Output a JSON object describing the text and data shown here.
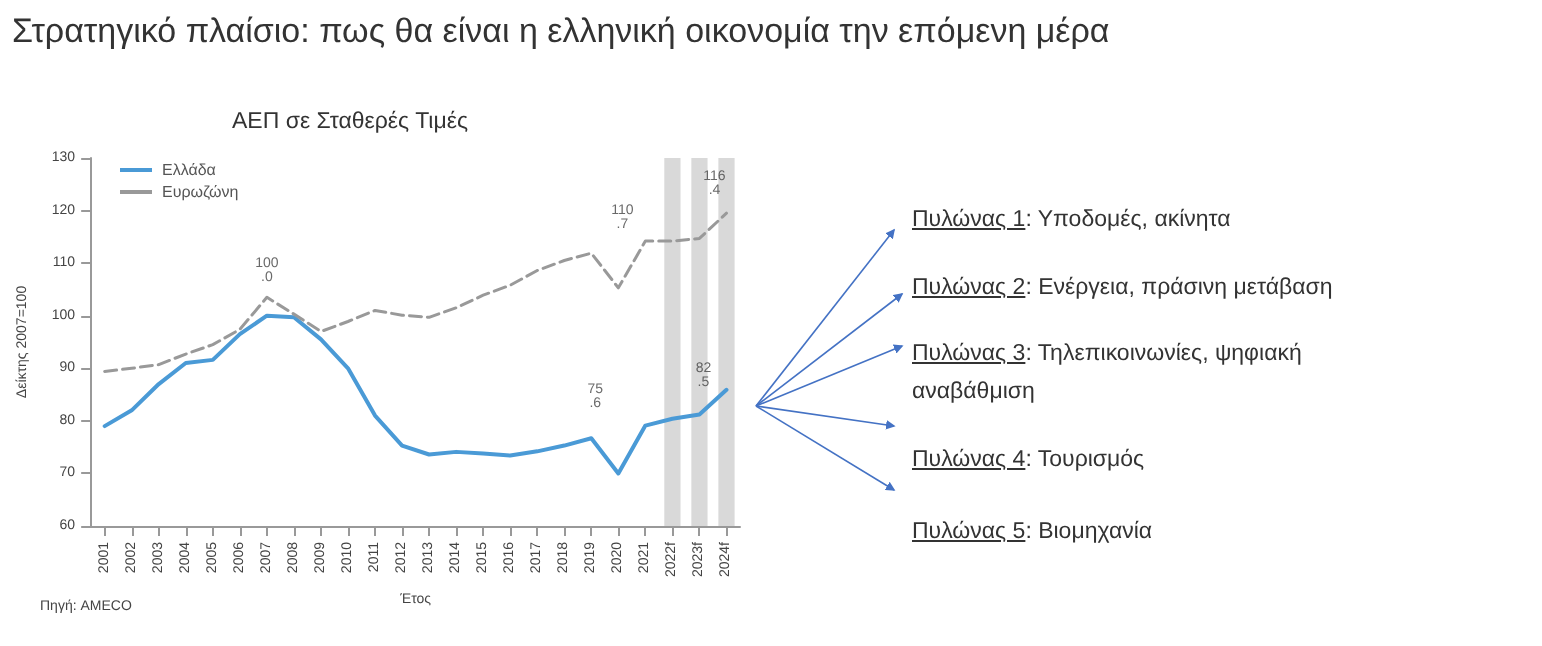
{
  "chart_data": {
    "type": "line",
    "title": "Στρατηγικό πλαίσιο: πως θα είναι η ελληνική οικονομία την επόμενη μέρα",
    "subtitle": "ΑΕΠ σε Σταθερές Τιμές",
    "xlabel": "Έτος",
    "ylabel": "Δείκτης 2007=100",
    "categories": [
      "2001",
      "2002",
      "2003",
      "2004",
      "2005",
      "2006",
      "2007",
      "2008",
      "2009",
      "2010",
      "2011",
      "2012",
      "2013",
      "2014",
      "2015",
      "2016",
      "2017",
      "2018",
      "2019",
      "2020",
      "2021",
      "2022f",
      "2023f",
      "2024f"
    ],
    "series": [
      {
        "name": "Ελλάδα",
        "color": "#4a9ad6",
        "line_style": "solid",
        "values": [
          79,
          82,
          87,
          91,
          91.6,
          96.5,
          100,
          99.7,
          95.5,
          90,
          81,
          75.3,
          73.6,
          74.1,
          73.8,
          73.4,
          74.2,
          75.3,
          76.7,
          70,
          79.1,
          80.4,
          81.2,
          85.9
        ]
      },
      {
        "name": "Ευρωζώνη",
        "color": "#999999",
        "line_style": "dashed",
        "values": [
          89.4,
          90,
          90.7,
          92.7,
          94.5,
          97.4,
          103.5,
          100.3,
          97,
          98.9,
          101,
          100.1,
          99.7,
          101.5,
          103.9,
          105.8,
          108.6,
          110.5,
          111.9,
          105.3,
          114.2,
          114.2,
          114.7,
          119.5
        ]
      }
    ],
    "ylim": [
      60,
      130
    ],
    "yticks": [
      60,
      70,
      80,
      90,
      100,
      110,
      120,
      130
    ],
    "grid": false,
    "legend": "top left",
    "marker": "none",
    "bands": [
      {
        "axis": "x",
        "from": "2022f",
        "to": "2022f",
        "color": "#d9d9d9"
      },
      {
        "axis": "x",
        "from": "2023f",
        "to": "2023f",
        "color": "#d9d9d9"
      },
      {
        "axis": "x",
        "from": "2024f",
        "to": "2024f",
        "color": "#d9d9d9"
      }
    ],
    "annotations": [
      "100.0",
      "110.7",
      "75.6",
      "82.5",
      "116.4",
      "Πηγή: AMECO",
      "Πυλώνας 1: Υποδομές, ακίνητα",
      "Πυλώνας 2: Ενέργεια, πράσινη μετάβαση",
      "Πυλώνας 3: Τηλεπικοινωνίες, ψηφιακή αναβάθμιση",
      "Πυλώνας 4: Τουρισμός",
      "Πυλώνας 5: Βιομηχανία"
    ]
  }
}
